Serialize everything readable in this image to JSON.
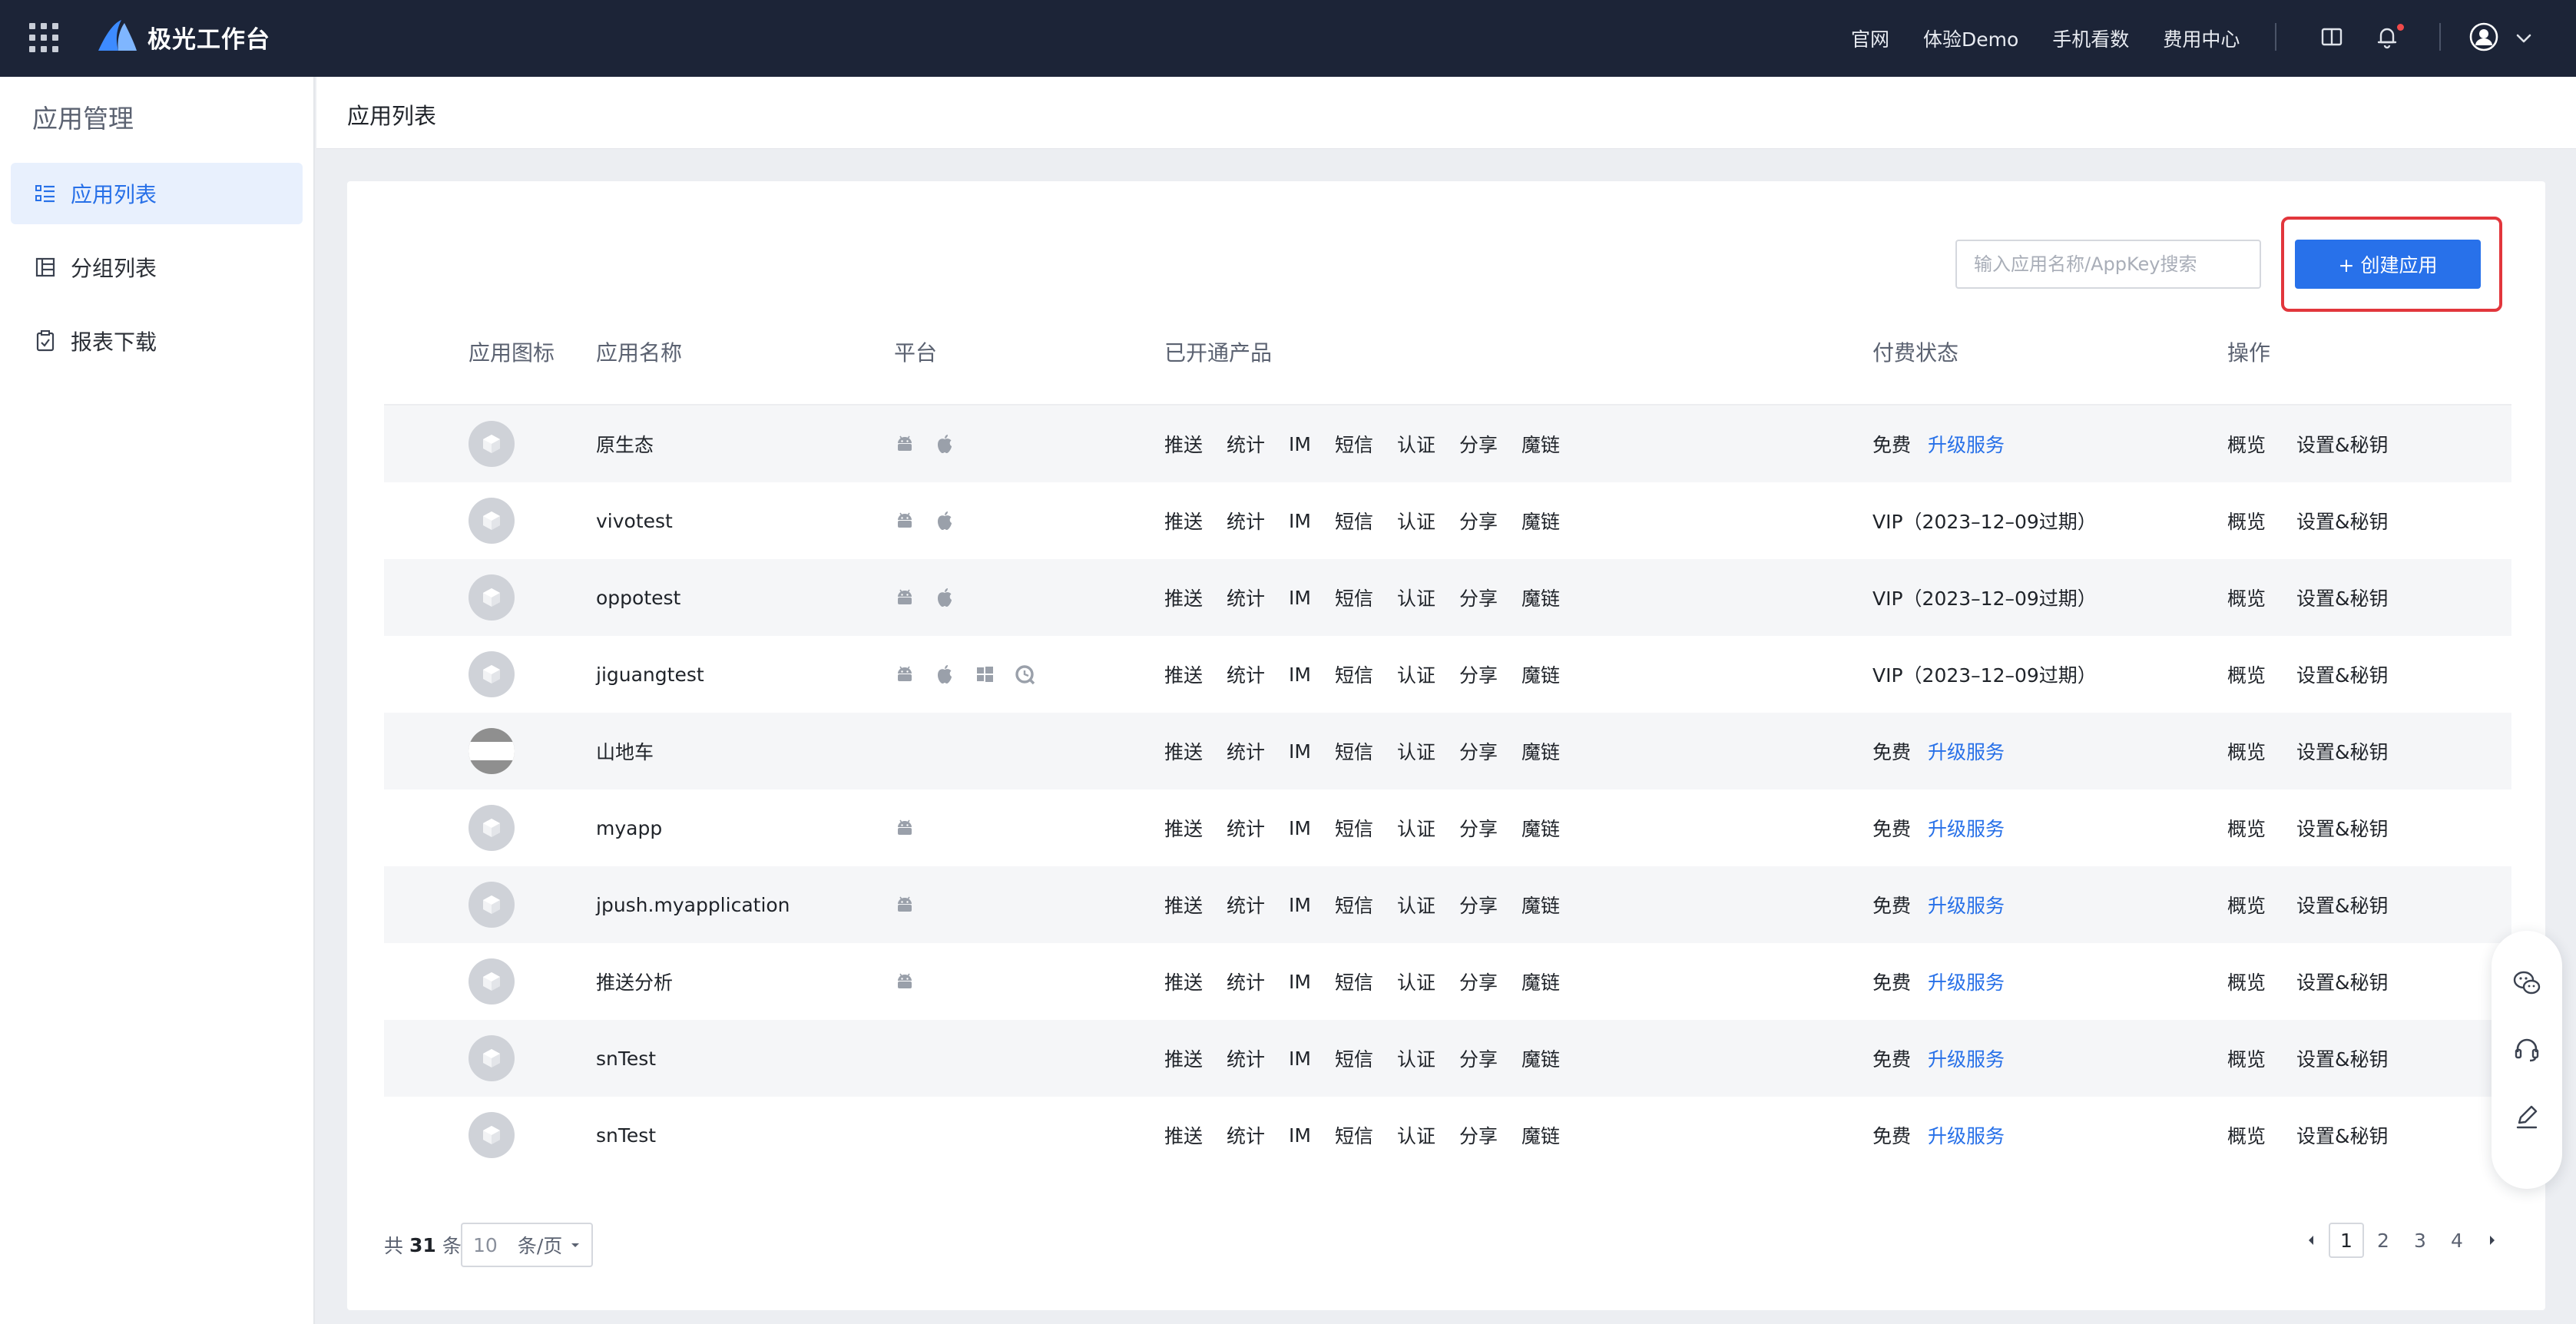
{
  "topbar": {
    "app_title": "极光工作台",
    "links": [
      "官网",
      "体验Demo",
      "手机看数",
      "费用中心"
    ],
    "icons": [
      "apps-grid-icon",
      "aurora-logo",
      "book-icon",
      "bell-icon",
      "user-avatar-icon",
      "chevron-down-icon"
    ],
    "notification_dot_color": "#f04a4a"
  },
  "sidebar": {
    "title": "应用管理",
    "items": [
      {
        "label": "应用列表",
        "icon": "list-icon",
        "active": true
      },
      {
        "label": "分组列表",
        "icon": "group-table-icon",
        "active": false
      },
      {
        "label": "报表下载",
        "icon": "report-icon",
        "active": false
      }
    ]
  },
  "header": {
    "breadcrumb": "应用列表"
  },
  "toolbar": {
    "search_placeholder": "输入应用名称/AppKey搜索",
    "create_label": "+ 创建应用"
  },
  "table": {
    "columns": [
      "应用图标",
      "应用名称",
      "平台",
      "已开通产品",
      "付费状态",
      "操作"
    ],
    "products": [
      "推送",
      "统计",
      "IM",
      "短信",
      "认证",
      "分享",
      "魔链"
    ],
    "operations": [
      "概览",
      "设置&秘钥"
    ],
    "rows": [
      {
        "name": "原生态",
        "icon": "cube",
        "platforms": [
          "android",
          "apple"
        ],
        "status": "免费",
        "upgrade": "升级服务"
      },
      {
        "name": "vivotest",
        "icon": "cube",
        "platforms": [
          "android",
          "apple"
        ],
        "status": "VIP（2023–12–09过期）",
        "upgrade": ""
      },
      {
        "name": "oppotest",
        "icon": "cube",
        "platforms": [
          "android",
          "apple"
        ],
        "status": "VIP（2023–12–09过期）",
        "upgrade": ""
      },
      {
        "name": "jiguangtest",
        "icon": "cube",
        "platforms": [
          "android",
          "apple",
          "windows",
          "quickapp"
        ],
        "status": "VIP（2023–12–09过期）",
        "upgrade": ""
      },
      {
        "name": "山地车",
        "icon": "screenshot",
        "platforms": [],
        "status": "免费",
        "upgrade": "升级服务"
      },
      {
        "name": "myapp",
        "icon": "cube",
        "platforms": [
          "android"
        ],
        "status": "免费",
        "upgrade": "升级服务"
      },
      {
        "name": "jpush.myapplication",
        "icon": "cube",
        "platforms": [
          "android"
        ],
        "status": "免费",
        "upgrade": "升级服务"
      },
      {
        "name": "推送分析",
        "icon": "cube",
        "platforms": [
          "android"
        ],
        "status": "免费",
        "upgrade": "升级服务"
      },
      {
        "name": "snTest",
        "icon": "cube",
        "platforms": [],
        "status": "免费",
        "upgrade": "升级服务"
      },
      {
        "name": "snTest",
        "icon": "cube",
        "platforms": [],
        "status": "免费",
        "upgrade": "升级服务"
      }
    ]
  },
  "pagination": {
    "total_prefix": "共",
    "total": "31",
    "total_suffix": "条",
    "page_size": "10",
    "page_size_unit": "条/页",
    "pages": [
      "1",
      "2",
      "3",
      "4"
    ],
    "current_page": "1"
  },
  "float_panel": {
    "icons": [
      "wechat-icon",
      "headset-icon",
      "edit-icon"
    ]
  },
  "colors": {
    "topbar": "#1c2437",
    "accent": "#2871ea",
    "highlight": "#e2363c"
  }
}
